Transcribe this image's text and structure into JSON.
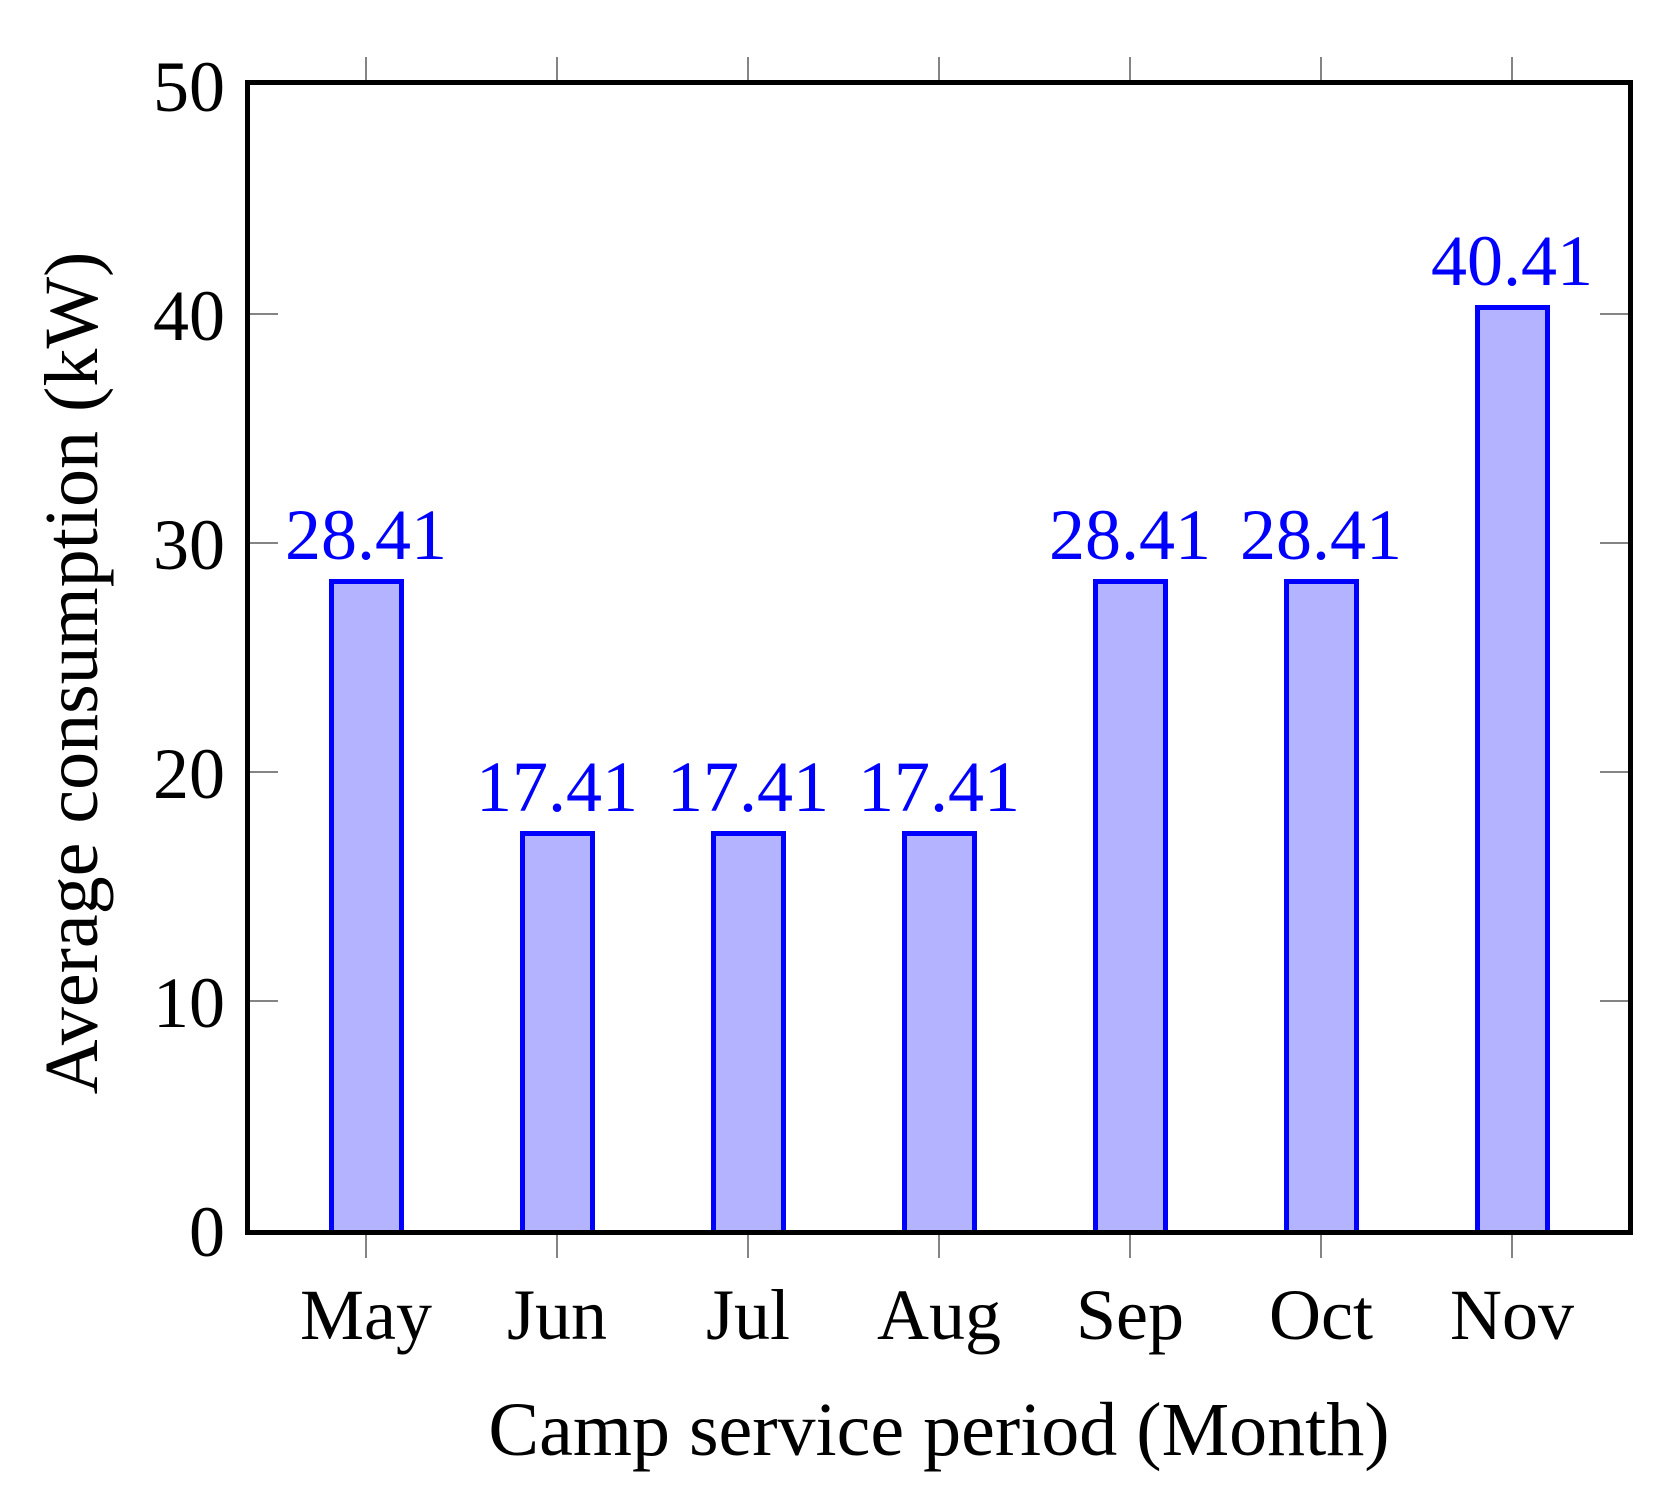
{
  "chart_data": {
    "type": "bar",
    "categories": [
      "May",
      "Jun",
      "Jul",
      "Aug",
      "Sep",
      "Oct",
      "Nov"
    ],
    "values": [
      28.41,
      17.41,
      17.41,
      17.41,
      28.41,
      28.41,
      40.41
    ],
    "value_labels": [
      "28.41",
      "17.41",
      "17.41",
      "17.41",
      "28.41",
      "28.41",
      "40.41"
    ],
    "title": "",
    "xlabel": "Camp service period (Month)",
    "ylabel": "Average consumption (kW)",
    "ylim": [
      0,
      50
    ],
    "ytick_values": [
      0,
      10,
      20,
      30,
      40,
      50
    ],
    "ytick_labels": [
      "0",
      "10",
      "20",
      "30",
      "40",
      "50"
    ],
    "grid": "off",
    "legend": "none",
    "colors": {
      "bar_fill": "#b3b3ff",
      "bar_edge": "#0000ff",
      "value_label": "#0000ff",
      "axis_frame": "#000000",
      "tick_mark": "#848484",
      "text": "#000000",
      "background": "#ffffff"
    }
  }
}
